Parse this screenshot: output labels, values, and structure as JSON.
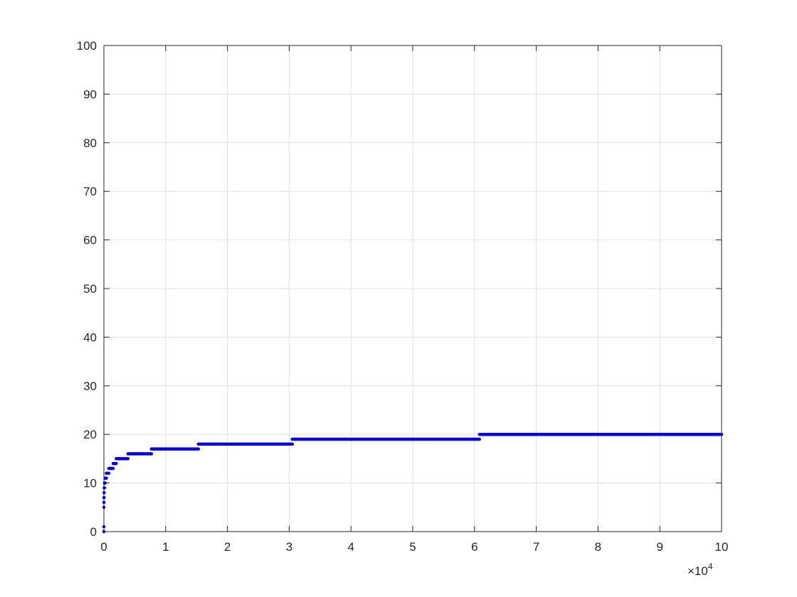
{
  "chart_data": {
    "type": "scatter",
    "title": "",
    "xlabel": "",
    "ylabel": "",
    "x_exponent_label": {
      "times": "×10",
      "power": "4"
    },
    "xlim": [
      0,
      100000
    ],
    "ylim": [
      0,
      100
    ],
    "x_ticks": [
      0,
      10000,
      20000,
      30000,
      40000,
      50000,
      60000,
      70000,
      80000,
      90000,
      100000
    ],
    "x_tick_labels": [
      "0",
      "1",
      "2",
      "3",
      "4",
      "5",
      "6",
      "7",
      "8",
      "9",
      "10"
    ],
    "y_ticks": [
      0,
      10,
      20,
      30,
      40,
      50,
      60,
      70,
      80,
      90,
      100
    ],
    "y_tick_labels": [
      "0",
      "10",
      "20",
      "30",
      "40",
      "50",
      "60",
      "70",
      "80",
      "90",
      "100"
    ],
    "grid": true,
    "legend": "none",
    "series_color": "#0000cd",
    "series": [
      {
        "description": "step-like dense markers, value constant over each x interval",
        "steps": [
          {
            "y": 0,
            "x_start": 0,
            "x_end": 1
          },
          {
            "y": 1,
            "x_start": 1,
            "x_end": 2
          },
          {
            "y": 5,
            "x_start": 3,
            "x_end": 5
          },
          {
            "y": 6,
            "x_start": 5,
            "x_end": 10
          },
          {
            "y": 7,
            "x_start": 10,
            "x_end": 25
          },
          {
            "y": 8,
            "x_start": 25,
            "x_end": 50
          },
          {
            "y": 9,
            "x_start": 50,
            "x_end": 100
          },
          {
            "y": 10,
            "x_start": 100,
            "x_end": 200
          },
          {
            "y": 11,
            "x_start": 200,
            "x_end": 400
          },
          {
            "y": 12,
            "x_start": 400,
            "x_end": 800
          },
          {
            "y": 13,
            "x_start": 800,
            "x_end": 1500
          },
          {
            "y": 14,
            "x_start": 1500,
            "x_end": 2000
          },
          {
            "y": 15,
            "x_start": 2000,
            "x_end": 3900
          },
          {
            "y": 16,
            "x_start": 3900,
            "x_end": 7700
          },
          {
            "y": 17,
            "x_start": 7700,
            "x_end": 15300
          },
          {
            "y": 18,
            "x_start": 15300,
            "x_end": 30500
          },
          {
            "y": 19,
            "x_start": 30500,
            "x_end": 60800
          },
          {
            "y": 20,
            "x_start": 60800,
            "x_end": 100000
          }
        ]
      }
    ]
  }
}
